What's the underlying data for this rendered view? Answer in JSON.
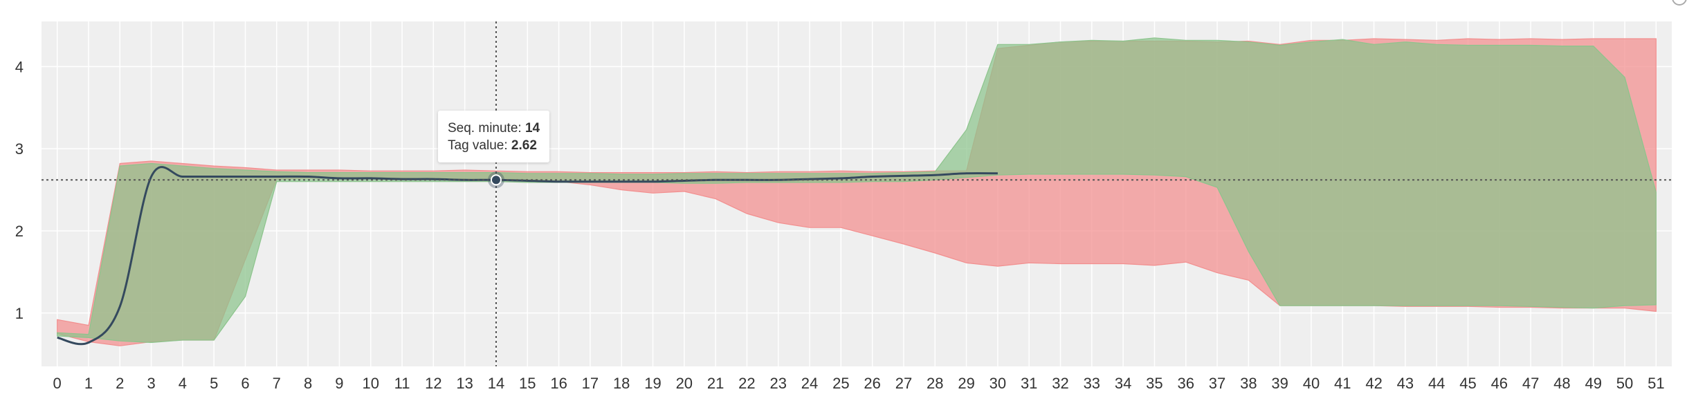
{
  "chart_data": {
    "type": "area",
    "x": [
      0,
      1,
      2,
      3,
      4,
      5,
      6,
      7,
      8,
      9,
      10,
      11,
      12,
      13,
      14,
      15,
      16,
      17,
      18,
      19,
      20,
      21,
      22,
      23,
      24,
      25,
      26,
      27,
      28,
      29,
      30,
      31,
      32,
      33,
      34,
      35,
      36,
      37,
      38,
      39,
      40,
      41,
      42,
      43,
      44,
      45,
      46,
      47,
      48,
      49,
      50,
      51
    ],
    "xlim": [
      -0.5,
      51.5
    ],
    "ylim": [
      0.35,
      4.55
    ],
    "yticks": [
      1,
      2,
      3,
      4
    ],
    "grid": true,
    "xlabel": "",
    "ylabel": "",
    "series": [
      {
        "kind": "band",
        "color": "#f28e8e",
        "lower": [
          0.75,
          0.65,
          0.6,
          0.65,
          0.67,
          0.67,
          1.65,
          2.63,
          2.64,
          2.64,
          2.64,
          2.64,
          2.64,
          2.63,
          2.62,
          2.61,
          2.6,
          2.56,
          2.5,
          2.46,
          2.48,
          2.39,
          2.21,
          2.1,
          2.04,
          2.04,
          1.94,
          1.84,
          1.73,
          1.61,
          1.57,
          1.61,
          1.6,
          1.6,
          1.6,
          1.58,
          1.62,
          1.49,
          1.4,
          1.09,
          1.09,
          1.09,
          1.09,
          1.08,
          1.08,
          1.08,
          1.07,
          1.07,
          1.06,
          1.06,
          1.06,
          1.02
        ],
        "upper": [
          0.92,
          0.85,
          2.82,
          2.85,
          2.82,
          2.79,
          2.77,
          2.74,
          2.74,
          2.74,
          2.73,
          2.73,
          2.73,
          2.74,
          2.73,
          2.72,
          2.72,
          2.71,
          2.71,
          2.71,
          2.71,
          2.72,
          2.71,
          2.72,
          2.72,
          2.73,
          2.72,
          2.72,
          2.73,
          2.73,
          4.22,
          4.26,
          4.3,
          4.31,
          4.31,
          4.31,
          4.31,
          4.3,
          4.31,
          4.27,
          4.32,
          4.32,
          4.34,
          4.33,
          4.32,
          4.34,
          4.33,
          4.34,
          4.33,
          4.34,
          4.34,
          4.34
        ]
      },
      {
        "kind": "band",
        "color": "#8cc48c",
        "lower": [
          0.72,
          0.7,
          0.66,
          0.64,
          0.67,
          0.67,
          1.2,
          2.6,
          2.6,
          2.6,
          2.6,
          2.6,
          2.6,
          2.6,
          2.6,
          2.59,
          2.59,
          2.59,
          2.59,
          2.59,
          2.58,
          2.58,
          2.59,
          2.59,
          2.59,
          2.59,
          2.6,
          2.6,
          2.62,
          2.65,
          2.68,
          2.69,
          2.69,
          2.69,
          2.69,
          2.68,
          2.66,
          2.53,
          1.75,
          1.09,
          1.09,
          1.09,
          1.09,
          1.09,
          1.09,
          1.09,
          1.09,
          1.08,
          1.07,
          1.06,
          1.09,
          1.1
        ],
        "upper": [
          0.76,
          0.74,
          2.79,
          2.82,
          2.79,
          2.76,
          2.74,
          2.72,
          2.71,
          2.71,
          2.71,
          2.71,
          2.71,
          2.71,
          2.71,
          2.7,
          2.7,
          2.7,
          2.69,
          2.69,
          2.7,
          2.7,
          2.7,
          2.7,
          2.7,
          2.7,
          2.7,
          2.71,
          2.72,
          3.23,
          4.27,
          4.27,
          4.3,
          4.32,
          4.31,
          4.35,
          4.32,
          4.32,
          4.3,
          4.26,
          4.3,
          4.33,
          4.27,
          4.3,
          4.27,
          4.26,
          4.26,
          4.26,
          4.25,
          4.25,
          3.87,
          2.47
        ]
      },
      {
        "kind": "line",
        "color": "#34495e",
        "x": [
          0,
          1,
          2,
          3,
          4,
          5,
          6,
          7,
          8,
          9,
          10,
          11,
          12,
          13,
          14,
          15,
          16,
          17,
          18,
          19,
          20,
          21,
          22,
          23,
          24,
          25,
          26,
          27,
          28,
          29,
          30
        ],
        "values": [
          0.7,
          0.64,
          1.08,
          2.66,
          2.66,
          2.66,
          2.66,
          2.66,
          2.66,
          2.64,
          2.64,
          2.63,
          2.63,
          2.62,
          2.62,
          2.61,
          2.6,
          2.6,
          2.6,
          2.6,
          2.61,
          2.62,
          2.62,
          2.62,
          2.63,
          2.64,
          2.66,
          2.67,
          2.68,
          2.7,
          2.7
        ]
      }
    ],
    "crosshair": {
      "x": 14,
      "y": 2.62
    },
    "tooltip": {
      "x_label": "Seq. minute",
      "x_value": "14",
      "y_label": "Tag value",
      "y_value": "2.62"
    }
  }
}
